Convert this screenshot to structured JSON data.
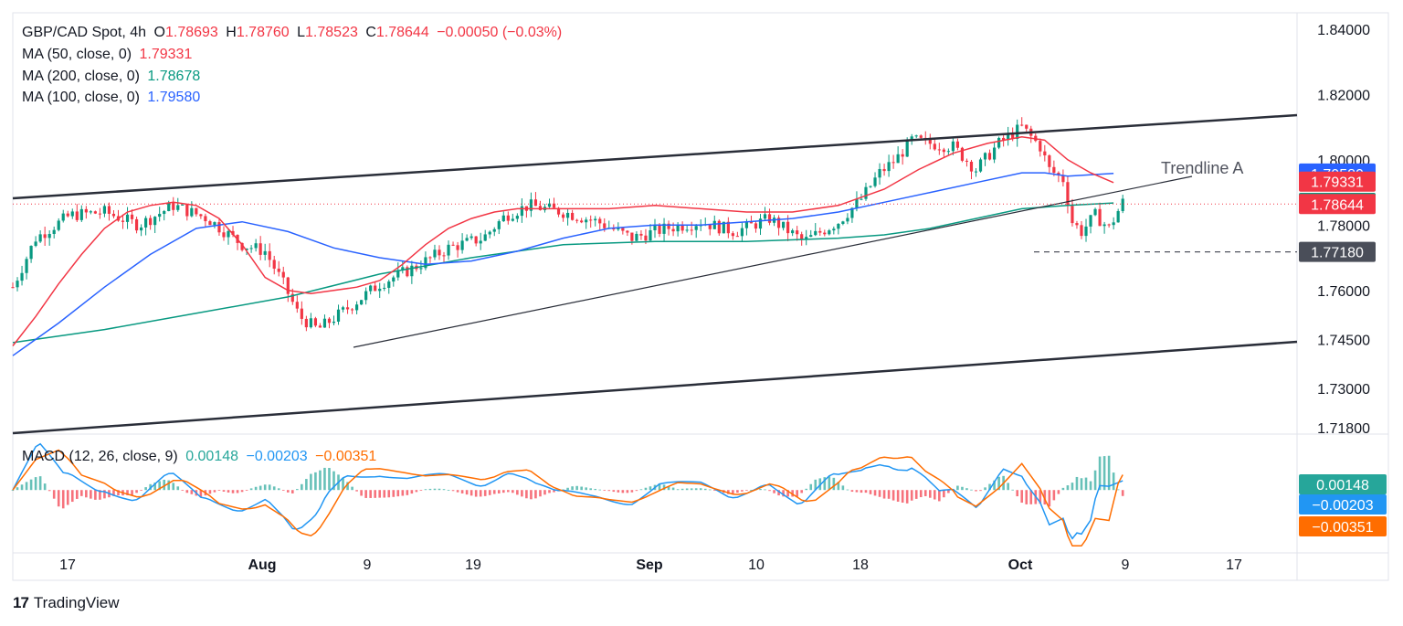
{
  "chart_data": [
    {
      "type": "candlestick",
      "title": "GBP/CAD Spot, 4h",
      "ohlc_readout": {
        "open_label": "O",
        "open": "1.78693",
        "high_label": "H",
        "high": "1.78760",
        "low_label": "L",
        "low": "1.78523",
        "close_label": "C",
        "close": "1.78644",
        "change": "−0.00050 (−0.03%)"
      },
      "indicators": [
        {
          "name": "MA (50, close, 0)",
          "value": "1.79331",
          "color": "#f23645"
        },
        {
          "name": "MA (200, close, 0)",
          "value": "1.78678",
          "color": "#089981"
        },
        {
          "name": "MA (100, close, 0)",
          "value": "1.79580",
          "color": "#2962ff"
        }
      ],
      "y_ticks": [
        "1.84000",
        "1.82000",
        "1.80000",
        "1.78000",
        "1.76000",
        "1.74500",
        "1.73000",
        "1.71800"
      ],
      "x_ticks": [
        "17",
        "Aug",
        "9",
        "19",
        "Sep",
        "10",
        "18",
        "Oct",
        "9",
        "17"
      ],
      "price_tags": [
        {
          "value": "1.79580",
          "color": "#2962ff"
        },
        {
          "value": "1.79331",
          "color": "#f23645"
        },
        {
          "value": "1.78678",
          "color": "#089981"
        },
        {
          "value": "1.78644",
          "color": "#f23645"
        },
        {
          "value": "1.77180",
          "color": "#4a4e59"
        }
      ],
      "annotation": "Trendline A",
      "ma50_path": [
        [
          0,
          1.743
        ],
        [
          10,
          1.752
        ],
        [
          20,
          1.762
        ],
        [
          30,
          1.771
        ],
        [
          40,
          1.779
        ],
        [
          50,
          1.784
        ],
        [
          60,
          1.786
        ],
        [
          70,
          1.787
        ],
        [
          80,
          1.786
        ],
        [
          90,
          1.782
        ],
        [
          100,
          1.774
        ],
        [
          110,
          1.764
        ],
        [
          120,
          1.76
        ],
        [
          130,
          1.759
        ],
        [
          140,
          1.76
        ],
        [
          150,
          1.761
        ],
        [
          160,
          1.763
        ],
        [
          170,
          1.768
        ],
        [
          180,
          1.774
        ],
        [
          190,
          1.779
        ],
        [
          200,
          1.782
        ],
        [
          210,
          1.784
        ],
        [
          220,
          1.785
        ],
        [
          240,
          1.785
        ],
        [
          260,
          1.785
        ],
        [
          280,
          1.786
        ],
        [
          300,
          1.785
        ],
        [
          320,
          1.784
        ],
        [
          340,
          1.784
        ],
        [
          360,
          1.786
        ],
        [
          380,
          1.791
        ],
        [
          395,
          1.797
        ],
        [
          410,
          1.802
        ],
        [
          425,
          1.805
        ],
        [
          440,
          1.807
        ],
        [
          450,
          1.806
        ],
        [
          460,
          1.8
        ],
        [
          470,
          1.796
        ],
        [
          480,
          1.793
        ]
      ],
      "ma100_path": [
        [
          0,
          1.74
        ],
        [
          20,
          1.75
        ],
        [
          40,
          1.761
        ],
        [
          60,
          1.771
        ],
        [
          80,
          1.779
        ],
        [
          100,
          1.781
        ],
        [
          120,
          1.778
        ],
        [
          140,
          1.773
        ],
        [
          160,
          1.77
        ],
        [
          180,
          1.768
        ],
        [
          200,
          1.769
        ],
        [
          220,
          1.772
        ],
        [
          240,
          1.776
        ],
        [
          260,
          1.779
        ],
        [
          280,
          1.78
        ],
        [
          300,
          1.78
        ],
        [
          320,
          1.781
        ],
        [
          340,
          1.782
        ],
        [
          360,
          1.784
        ],
        [
          380,
          1.787
        ],
        [
          400,
          1.79
        ],
        [
          420,
          1.793
        ],
        [
          440,
          1.796
        ],
        [
          450,
          1.796
        ],
        [
          460,
          1.795
        ],
        [
          480,
          1.7958
        ]
      ],
      "ma200_path": [
        [
          0,
          1.744
        ],
        [
          40,
          1.748
        ],
        [
          80,
          1.753
        ],
        [
          120,
          1.758
        ],
        [
          160,
          1.765
        ],
        [
          200,
          1.77
        ],
        [
          240,
          1.774
        ],
        [
          280,
          1.775
        ],
        [
          320,
          1.775
        ],
        [
          360,
          1.776
        ],
        [
          380,
          1.777
        ],
        [
          400,
          1.779
        ],
        [
          420,
          1.782
        ],
        [
          440,
          1.785
        ],
        [
          460,
          1.786
        ],
        [
          480,
          1.78678
        ]
      ],
      "ylim": [
        1.716,
        1.845
      ],
      "xlim": [
        0,
        560
      ]
    },
    {
      "type": "macd",
      "title": "MACD (12, 26, close, 9)",
      "values": {
        "histogram": "0.00148",
        "macd": "−0.00203",
        "signal": "−0.00351"
      },
      "colors": {
        "histogram": "#26a69a",
        "macd": "#2196f3",
        "signal": "#ff6d00"
      },
      "price_tags": [
        {
          "value": "0.00148",
          "color": "#26a69a"
        },
        {
          "value": "−0.00203",
          "color": "#2196f3"
        },
        {
          "value": "−0.00351",
          "color": "#ff6d00"
        }
      ],
      "ylim": [
        -0.013,
        0.011
      ]
    }
  ],
  "brand": {
    "logo": "17",
    "name": "TradingView"
  }
}
